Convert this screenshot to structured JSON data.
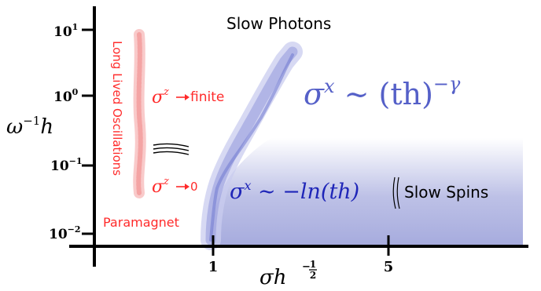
{
  "y_axis": {
    "label_main": "ω",
    "label_exp": "−1",
    "label_tail": "h",
    "ticks": [
      {
        "base": "10",
        "exp": "1"
      },
      {
        "base": "10",
        "exp": "0"
      },
      {
        "base": "10",
        "exp": "−1"
      },
      {
        "base": "10",
        "exp": "−2"
      }
    ]
  },
  "x_axis": {
    "label_main": "σh",
    "label_exp_num": "1",
    "label_exp_den": "2",
    "label_exp_sign": "−",
    "ticks": [
      "1",
      "5"
    ]
  },
  "regions": {
    "slow_photons": "Slow Photons",
    "slow_spins": "Slow Spins",
    "paramagnet": "Paramagnet",
    "long_lived": "Long Lived Oscillations"
  },
  "annotations": {
    "sigma": "σ",
    "z": "z",
    "finite": "finite",
    "zero": "0"
  },
  "formulas": {
    "power_law_left": "σ",
    "power_law_sup": "x",
    "power_law_right": " ∼ (th)",
    "power_law_exp": "−γ",
    "log_left": "σ",
    "log_sup": "x",
    "log_right": " ∼ −ln(th)"
  },
  "colors": {
    "blue": "#5560c8",
    "blue_fill": "#a7acde",
    "red": "#ff2a2a",
    "red_band": "#f8c4c4",
    "axis": "#000000"
  }
}
